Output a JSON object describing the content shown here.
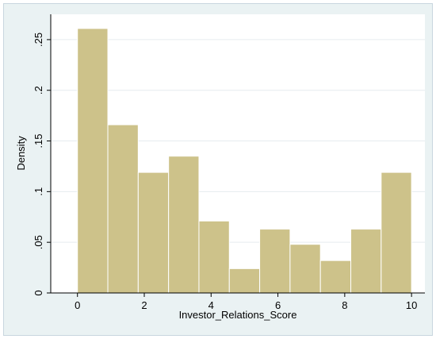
{
  "chart_data": {
    "type": "bar",
    "subtype": "histogram",
    "title": "",
    "xlabel": "Investor_Relations_Score",
    "ylabel": "Density",
    "bins": [
      {
        "start": 0.0,
        "end": 0.9091,
        "value": 0.261
      },
      {
        "start": 0.9091,
        "end": 1.8182,
        "value": 0.166
      },
      {
        "start": 1.8182,
        "end": 2.7273,
        "value": 0.119
      },
      {
        "start": 2.7273,
        "end": 3.6364,
        "value": 0.135
      },
      {
        "start": 3.6364,
        "end": 4.5455,
        "value": 0.071
      },
      {
        "start": 4.5455,
        "end": 5.4545,
        "value": 0.024
      },
      {
        "start": 5.4545,
        "end": 6.3636,
        "value": 0.063
      },
      {
        "start": 6.3636,
        "end": 7.2727,
        "value": 0.048
      },
      {
        "start": 7.2727,
        "end": 8.1818,
        "value": 0.032
      },
      {
        "start": 8.1818,
        "end": 9.0909,
        "value": 0.063
      },
      {
        "start": 9.0909,
        "end": 10.0,
        "value": 0.119
      }
    ],
    "xlim": [
      -0.8,
      10.4
    ],
    "ylim": [
      0,
      0.275
    ],
    "xticks": [
      {
        "value": 0,
        "label": "0"
      },
      {
        "value": 2,
        "label": "2"
      },
      {
        "value": 4,
        "label": "4"
      },
      {
        "value": 6,
        "label": "6"
      },
      {
        "value": 8,
        "label": "8"
      },
      {
        "value": 10,
        "label": "10"
      }
    ],
    "yticks": [
      {
        "value": 0,
        "label": "0"
      },
      {
        "value": 0.05,
        "label": ".05"
      },
      {
        "value": 0.1,
        "label": ".1"
      },
      {
        "value": 0.15,
        "label": ".15"
      },
      {
        "value": 0.2,
        "label": ".2"
      },
      {
        "value": 0.25,
        "label": ".25"
      }
    ],
    "grid": true,
    "legend": "none",
    "colors": {
      "bar_fill": "#cdc28a",
      "bar_stroke": "#ffffff",
      "plot_background": "#ffffff",
      "outer_background": "#eaf2f3",
      "grid": "#e6ecef",
      "axis": "#000000"
    }
  }
}
